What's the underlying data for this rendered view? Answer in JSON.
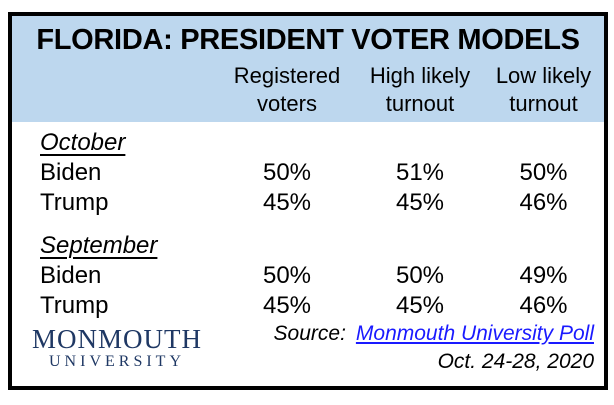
{
  "chart_data": {
    "type": "table",
    "title": "FLORIDA: PRESIDENT VOTER MODELS",
    "columns": [
      "Registered voters",
      "High likely turnout",
      "Low likely turnout"
    ],
    "sections": [
      {
        "label": "October",
        "rows": [
          {
            "name": "Biden",
            "values": [
              "50%",
              "51%",
              "50%"
            ]
          },
          {
            "name": "Trump",
            "values": [
              "45%",
              "45%",
              "46%"
            ]
          }
        ]
      },
      {
        "label": "September",
        "rows": [
          {
            "name": "Biden",
            "values": [
              "50%",
              "50%",
              "49%"
            ]
          },
          {
            "name": "Trump",
            "values": [
              "45%",
              "45%",
              "46%"
            ]
          }
        ]
      }
    ],
    "source": "Monmouth University Poll, Oct. 24-28, 2020"
  },
  "footer": {
    "logo_line1": "MONMOUTH",
    "logo_line2": "UNIVERSITY",
    "source_label": "Source:",
    "source_link": "Monmouth University Poll",
    "source_date": "Oct. 24-28, 2020"
  },
  "colors": {
    "header_bg": "#BDD7EE",
    "border": "#000000",
    "link_blue": "#1A1AFF",
    "logo_navy": "#1F3864"
  }
}
